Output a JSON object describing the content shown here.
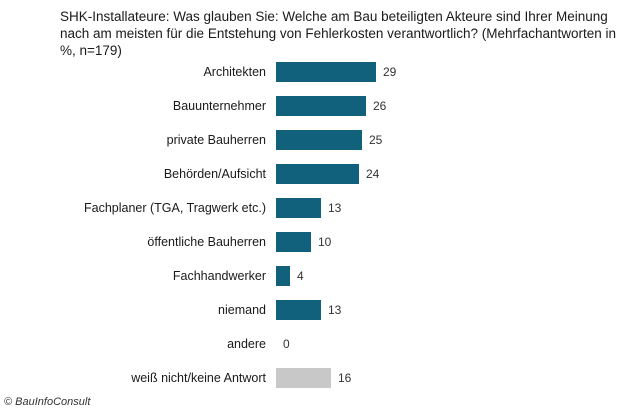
{
  "chart_data": {
    "type": "bar",
    "orientation": "horizontal",
    "title": "SHK-Installateure:  Was glauben  Sie: Welche am Bau beteiligten Akteure sind Ihrer Meinung  nach am meisten für die Entstehung  von Fehlerkosten verantwortlich? (Mehrfachantworten  in %, n=179)",
    "categories": [
      "Architekten",
      "Bauunternehmer",
      "private Bauherren",
      "Behörden/Aufsicht",
      "Fachplaner (TGA, Tragwerk etc.)",
      "öffentliche Bauherren",
      "Fachhandwerker",
      "niemand",
      "andere",
      "weiß nicht/keine Antwort"
    ],
    "values": [
      29,
      26,
      25,
      24,
      13,
      10,
      4,
      13,
      0,
      16
    ],
    "colors": [
      "#11607c",
      "#11607c",
      "#11607c",
      "#11607c",
      "#11607c",
      "#11607c",
      "#11607c",
      "#11607c",
      "#11607c",
      "#c8c8c8"
    ],
    "xlabel": "",
    "ylabel": "",
    "unit": "%",
    "grid": false,
    "legend": null
  },
  "footer": "© BauInfoConsult"
}
